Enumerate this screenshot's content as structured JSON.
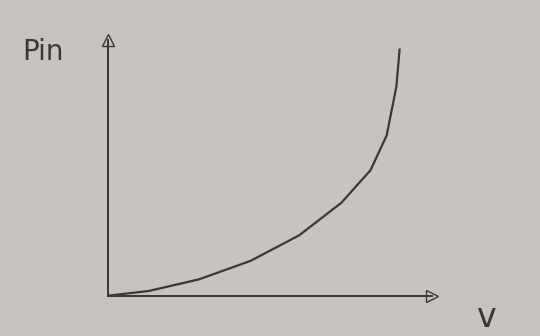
{
  "chart_data": {
    "type": "line",
    "x_label": "v",
    "y_label": "Pin",
    "x": [
      0,
      1.25,
      2.8,
      4.4,
      5.9,
      7.2,
      8.1,
      8.6,
      8.9,
      9.0
    ],
    "values": [
      0,
      0.2,
      0.7,
      1.5,
      2.6,
      4.0,
      5.4,
      6.9,
      9.0,
      10.6
    ],
    "color": "#3a3836",
    "xlim": [
      0,
      10
    ],
    "ylim": [
      0,
      11
    ],
    "xticks": [],
    "yticks": [],
    "tick_labels": false,
    "grid": false
  }
}
